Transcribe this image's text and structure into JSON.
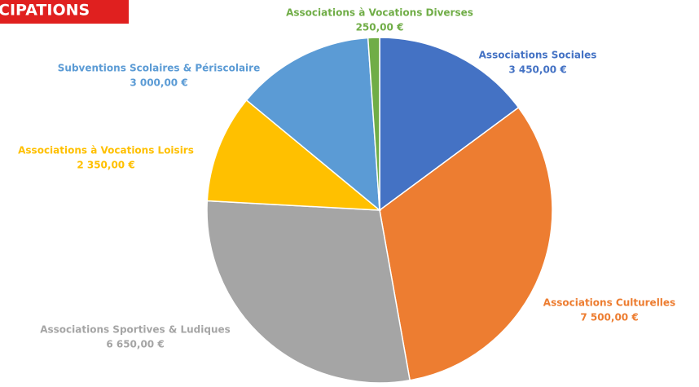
{
  "chart_data": {
    "type": "pie",
    "title": "CIPATIONS",
    "categories": [
      "Associations Sociales",
      "Associations Culturelles",
      "Associations Sportives & Ludiques",
      "Associations à Vocations Loisirs",
      "Subventions Scolaires & Périscolaire",
      "Associations à Vocations Diverses"
    ],
    "values": [
      3450,
      7500,
      6650,
      2350,
      3000,
      250
    ],
    "value_labels": [
      "3 450,00 €",
      "7 500,00 €",
      "6 650,00 €",
      "2 350,00 €",
      "3 000,00 €",
      "250,00 €"
    ],
    "colors": [
      "#4472c4",
      "#ed7d31",
      "#a5a5a5",
      "#ffc000",
      "#5b9bd5",
      "#70ad47"
    ]
  }
}
